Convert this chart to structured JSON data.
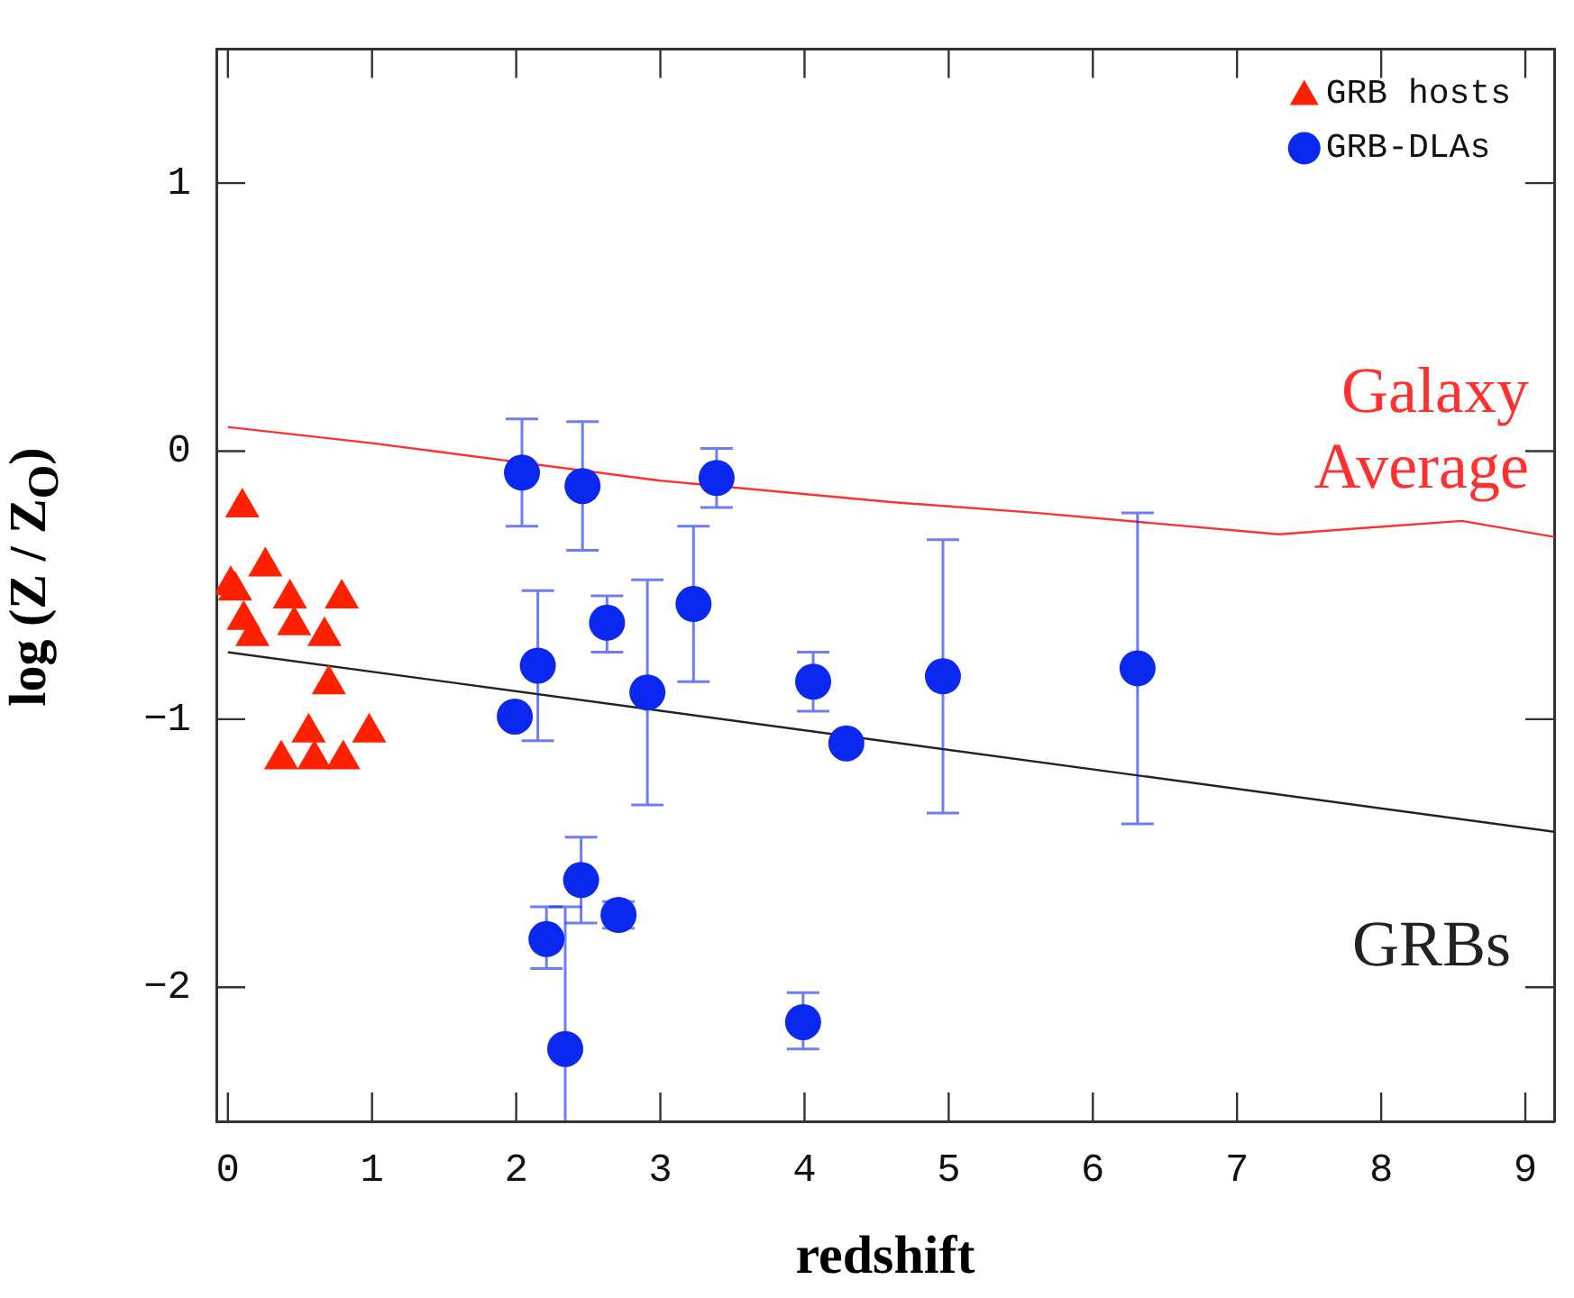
{
  "chart_data": {
    "type": "scatter",
    "xlabel": "redshift",
    "ylabel": "log (Z / Z$_{O}$)",
    "xlim": [
      -0.08,
      9.2
    ],
    "ylim": [
      -2.5,
      1.5
    ],
    "xticks": [
      0,
      1,
      2,
      3,
      4,
      5,
      6,
      7,
      8,
      9
    ],
    "yticks": [
      -2,
      -1,
      0,
      1
    ],
    "legend": "top right",
    "series": [
      {
        "name": "GRB hosts",
        "type": "scatter",
        "marker": "triangle",
        "color": "#ff2000",
        "x": [
          0.1,
          0.26,
          0.02,
          0.05,
          0.43,
          0.79,
          0.11,
          0.17,
          0.46,
          0.67,
          0.7,
          0.56,
          0.98,
          0.37,
          0.6,
          0.8
        ],
        "values": [
          -0.21,
          -0.43,
          -0.5,
          -0.52,
          -0.55,
          -0.55,
          -0.63,
          -0.69,
          -0.65,
          -0.69,
          -0.87,
          -1.05,
          -1.05,
          -1.15,
          -1.15,
          -1.15
        ]
      },
      {
        "name": "GRB-DLAs",
        "type": "scatter",
        "marker": "circle",
        "color": "#0a28f0",
        "x": [
          2.04,
          2.46,
          3.39,
          3.23,
          2.63,
          2.15,
          1.99,
          2.91,
          2.45,
          2.21,
          2.71,
          2.34,
          3.99,
          4.06,
          4.29,
          4.96,
          6.31
        ],
        "values": [
          -0.08,
          -0.13,
          -0.1,
          -0.57,
          -0.64,
          -0.8,
          -0.99,
          -0.9,
          -1.6,
          -1.82,
          -1.73,
          -2.23,
          -2.13,
          -0.86,
          -1.09,
          -0.84,
          -0.81
        ],
        "errors": [
          [
            -0.28,
            0.12
          ],
          [
            -0.37,
            0.11
          ],
          [
            -0.21,
            0.01
          ],
          [
            -0.86,
            -0.28
          ],
          [
            -0.75,
            -0.54
          ],
          [
            -1.08,
            -0.52
          ],
          null,
          [
            -1.32,
            -0.48
          ],
          [
            -1.76,
            -1.44
          ],
          [
            -1.93,
            -1.7
          ],
          [
            -1.78,
            -1.68
          ],
          [
            -2.5,
            -1.7
          ],
          [
            -2.23,
            -2.02
          ],
          [
            -0.97,
            -0.75
          ],
          null,
          [
            -1.35,
            -0.33
          ],
          [
            -1.39,
            -0.23
          ]
        ]
      },
      {
        "type": "line",
        "marker": "none",
        "color": "#ff3030",
        "x": [
          0,
          1,
          3,
          4.6,
          5.6,
          7.29,
          8.56,
          9.2
        ],
        "values": [
          0.09,
          0.03,
          -0.11,
          -0.19,
          -0.23,
          -0.31,
          -0.26,
          -0.32
        ]
      },
      {
        "type": "line",
        "marker": "none",
        "color": "#222222",
        "x": [
          0,
          9.2
        ],
        "values": [
          -0.75,
          -1.42
        ]
      }
    ],
    "annotations": [
      "Galaxy Average",
      "GRBs"
    ]
  }
}
